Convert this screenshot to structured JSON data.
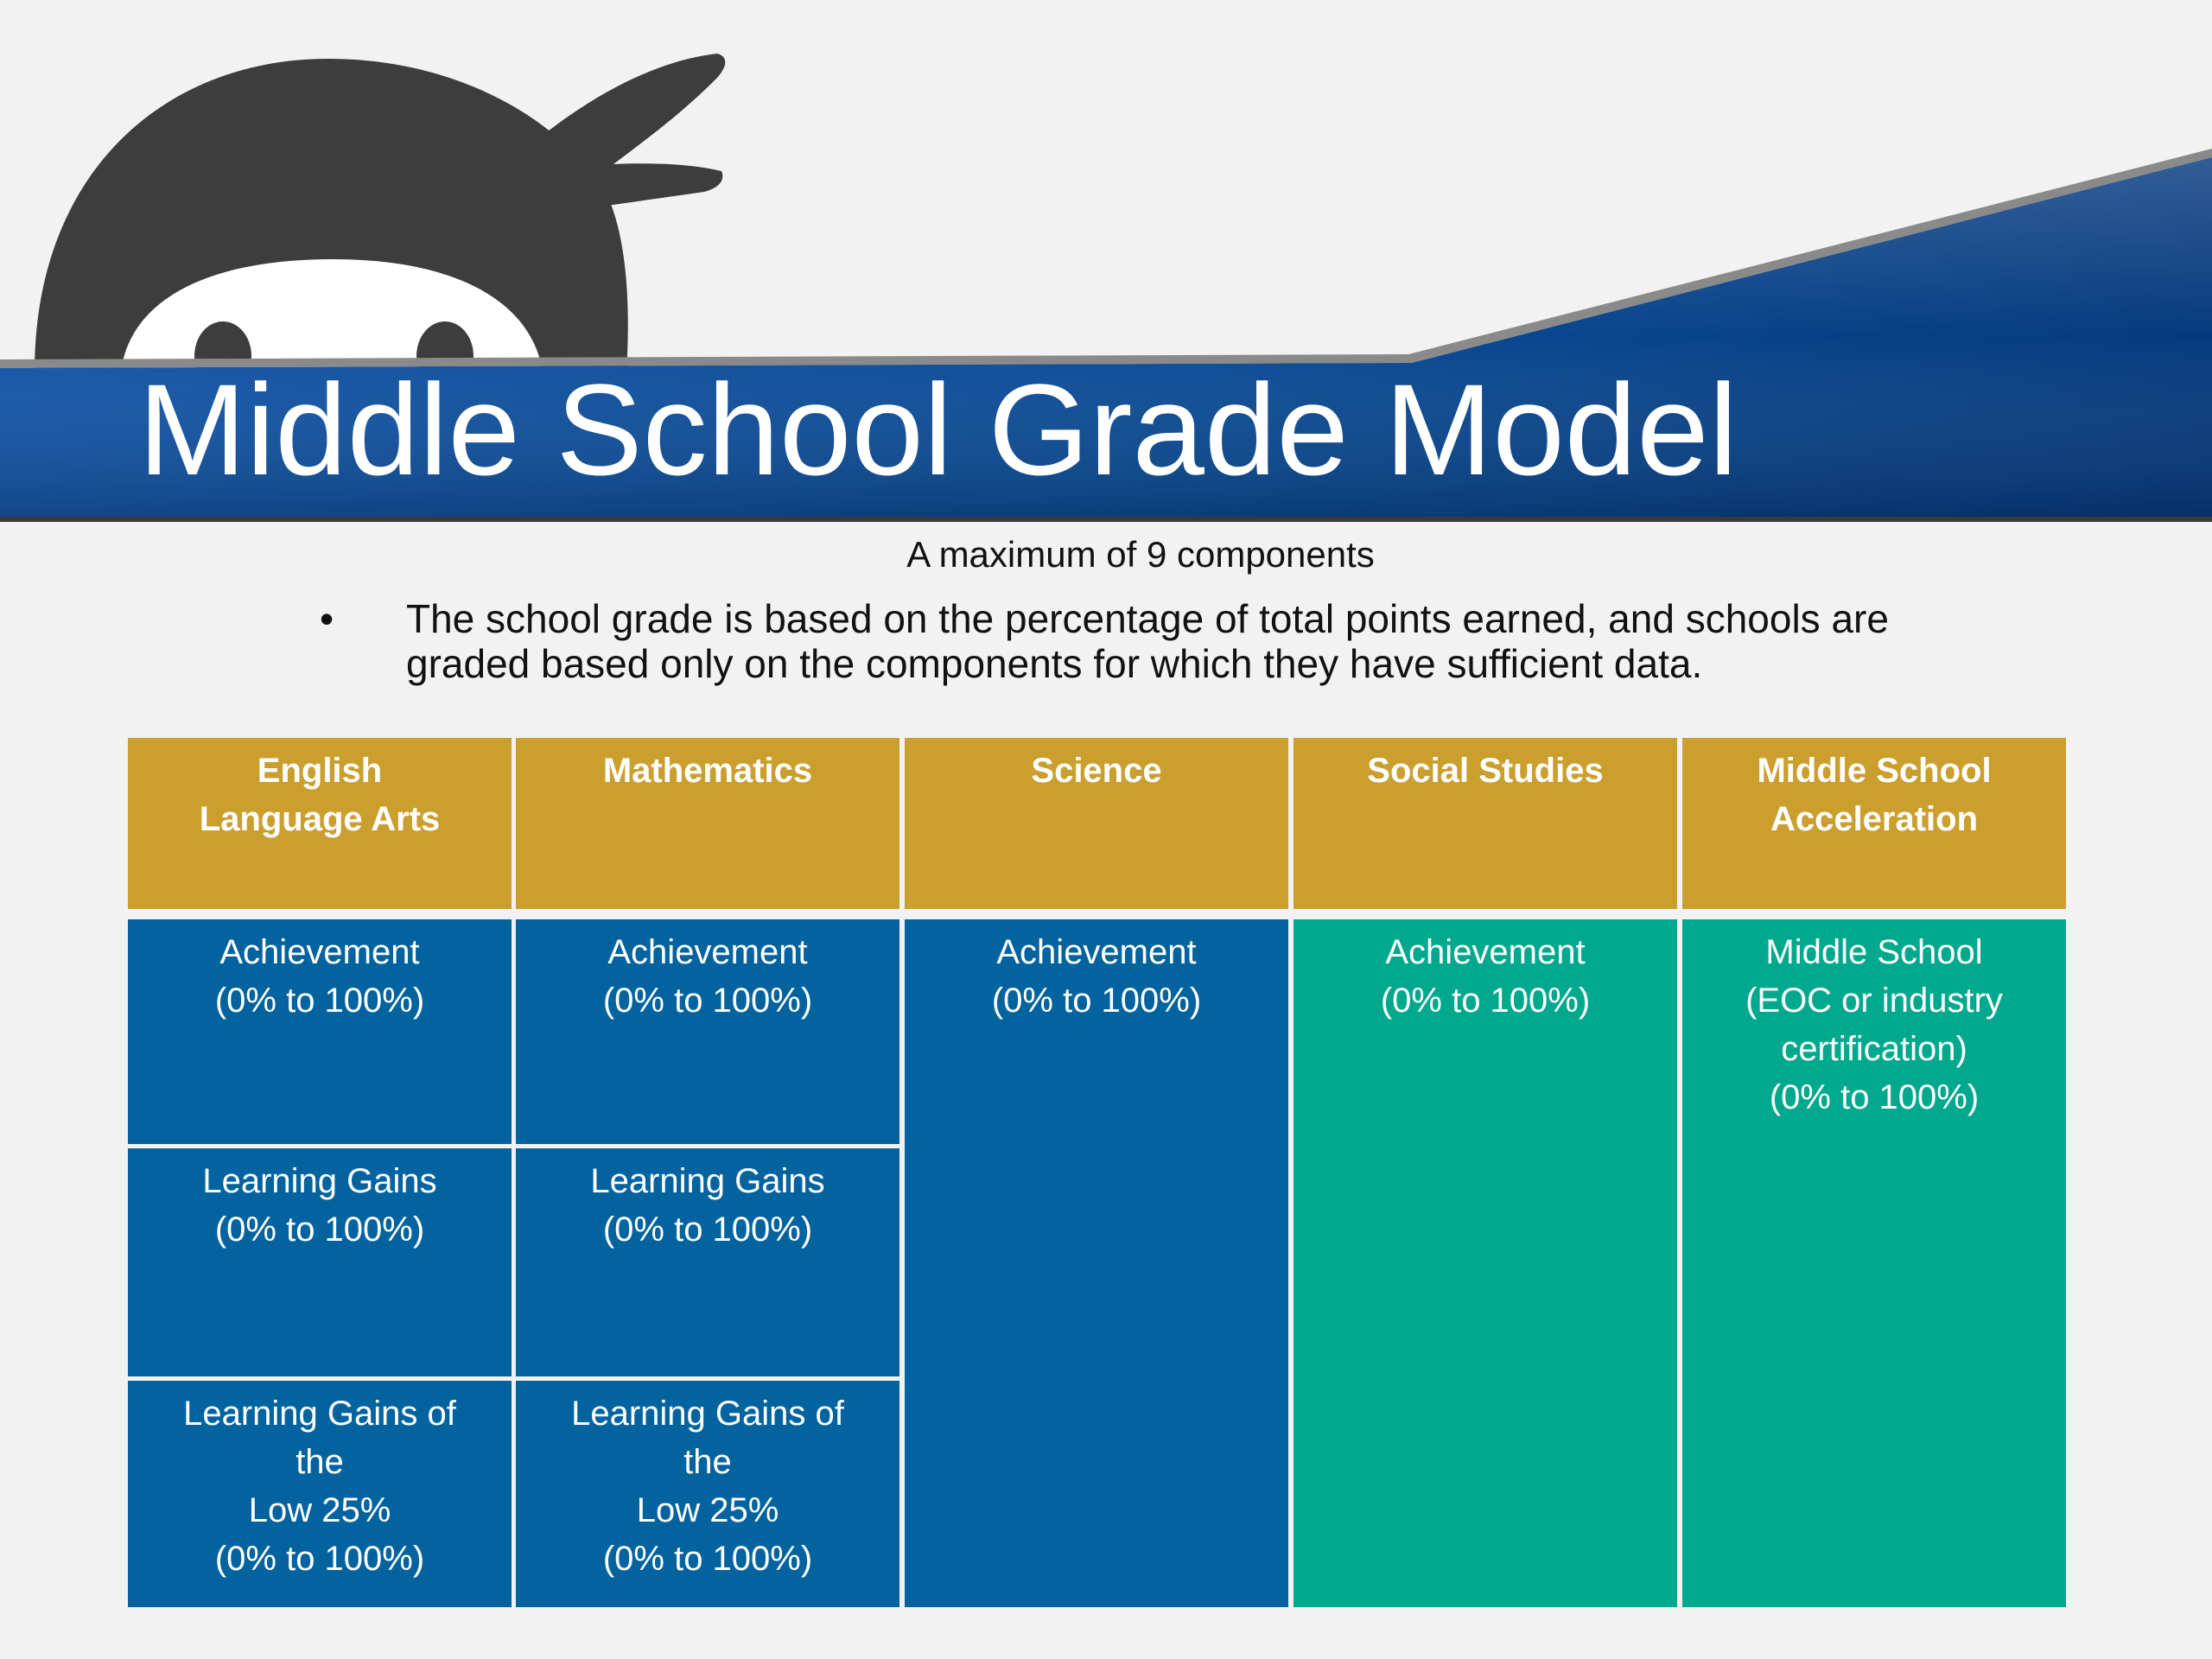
{
  "title": "Middle School Grade Model",
  "subtitle": "A maximum of 9 components",
  "bullet": {
    "marker": "•",
    "line1": "The school grade is based on the percentage of total points earned, and schools are",
    "line2": "graded based only on the components for which they have sufficient data."
  },
  "colors": {
    "header": "#cb9f2e",
    "blue": "#03639e",
    "teal": "#00a98e",
    "banner": "#0a4a93",
    "ninja": "#3d3d3d"
  },
  "table": {
    "headers": [
      {
        "line1": "English",
        "line2": "Language Arts"
      },
      {
        "line1": "Mathematics",
        "line2": ""
      },
      {
        "line1": "Science",
        "line2": ""
      },
      {
        "line1": "Social Studies",
        "line2": ""
      },
      {
        "line1": "Middle School",
        "line2": "Acceleration"
      }
    ],
    "ela": {
      "achievement": {
        "line1": "Achievement",
        "line2": "(0% to 100%)"
      },
      "gains": {
        "line1": "Learning Gains",
        "line2": "(0% to 100%)"
      },
      "low25": {
        "line1": "Learning Gains of",
        "line2": "the",
        "line3": "Low 25%",
        "line4": "(0% to 100%)"
      }
    },
    "math": {
      "achievement": {
        "line1": "Achievement",
        "line2": "(0% to 100%)"
      },
      "gains": {
        "line1": "Learning Gains",
        "line2": "(0% to 100%)"
      },
      "low25": {
        "line1": "Learning Gains of",
        "line2": "the",
        "line3": "Low 25%",
        "line4": "(0% to 100%)"
      }
    },
    "science": {
      "line1": "Achievement",
      "line2": "(0% to 100%)"
    },
    "social": {
      "line1": "Achievement",
      "line2": "(0% to 100%)"
    },
    "acceleration": {
      "line1": "Middle School",
      "line2": "(EOC or industry",
      "line3": "certification)",
      "line4": "(0% to 100%)"
    }
  }
}
